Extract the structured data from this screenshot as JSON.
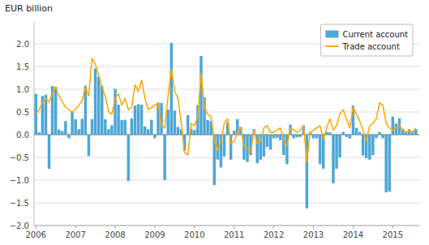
{
  "chart_data": {
    "type": "bar",
    "ylabel": "EUR billion",
    "x": [
      2006,
      2006.0833333333333,
      2006.1666666666667,
      2006.25,
      2006.3333333333333,
      2006.4166666666667,
      2006.5,
      2006.5833333333333,
      2006.6666666666667,
      2006.75,
      2006.8333333333333,
      2006.9166666666667,
      2007,
      2007.0833333333333,
      2007.1666666666667,
      2007.25,
      2007.3333333333333,
      2007.4166666666667,
      2007.5,
      2007.5833333333333,
      2007.6666666666667,
      2007.75,
      2007.8333333333333,
      2007.9166666666667,
      2008,
      2008.0833333333333,
      2008.1666666666667,
      2008.25,
      2008.3333333333333,
      2008.4166666666667,
      2008.5,
      2008.5833333333333,
      2008.6666666666667,
      2008.75,
      2008.8333333333333,
      2008.9166666666667,
      2009,
      2009.0833333333333,
      2009.1666666666667,
      2009.25,
      2009.3333333333333,
      2009.4166666666667,
      2009.5,
      2009.5833333333333,
      2009.6666666666667,
      2009.75,
      2009.8333333333333,
      2009.9166666666667,
      2010,
      2010.0833333333333,
      2010.1666666666667,
      2010.25,
      2010.3333333333333,
      2010.4166666666667,
      2010.5,
      2010.5833333333333,
      2010.6666666666667,
      2010.75,
      2010.8333333333333,
      2010.9166666666667,
      2011,
      2011.0833333333333,
      2011.1666666666667,
      2011.25,
      2011.3333333333333,
      2011.4166666666667,
      2011.5,
      2011.5833333333333,
      2011.6666666666667,
      2011.75,
      2011.8333333333333,
      2011.9166666666667,
      2012,
      2012.0833333333333,
      2012.1666666666667,
      2012.25,
      2012.3333333333333,
      2012.4166666666667,
      2012.5,
      2012.5833333333333,
      2012.6666666666667,
      2012.75,
      2012.8333333333333,
      2012.9166666666667,
      2013,
      2013.0833333333333,
      2013.1666666666667,
      2013.25,
      2013.3333333333333,
      2013.4166666666667,
      2013.5,
      2013.5833333333333,
      2013.6666666666667,
      2013.75,
      2013.8333333333333,
      2013.9166666666667,
      2014,
      2014.0833333333333,
      2014.1666666666667,
      2014.25,
      2014.3333333333333,
      2014.4166666666667,
      2014.5,
      2014.5833333333333,
      2014.6666666666667,
      2014.75,
      2014.8333333333333,
      2014.9166666666667,
      2015,
      2015.0833333333333,
      2015.1666666666667,
      2015.25,
      2015.3333333333333,
      2015.4166666666667,
      2015.5,
      2015.5833333333333
    ],
    "series": [
      {
        "name": "Current account",
        "type": "bar",
        "color": "#4da6d6",
        "values": [
          0.9,
          0.05,
          0.85,
          0.88,
          -0.75,
          1.07,
          1.05,
          0.11,
          0.08,
          0.3,
          -0.08,
          0.5,
          0.34,
          0.12,
          0.35,
          1.08,
          -0.47,
          0.34,
          1.46,
          1.28,
          1.07,
          0.34,
          0.12,
          0.21,
          1.01,
          0.66,
          0.32,
          0.33,
          -1.02,
          0.36,
          0.64,
          0.67,
          0.66,
          0.18,
          0.12,
          0.33,
          -0.08,
          0.7,
          0.7,
          -1.0,
          0.55,
          2.02,
          0.53,
          0.17,
          0.12,
          -0.35,
          0.43,
          0.13,
          0.1,
          0.65,
          1.73,
          0.82,
          0.32,
          0.3,
          -1.11,
          -0.55,
          -0.72,
          -0.48,
          0.27,
          -0.55,
          0.09,
          0.34,
          0.17,
          -0.55,
          -0.6,
          -0.45,
          0.12,
          -0.63,
          -0.55,
          -0.48,
          -0.27,
          -0.33,
          -0.08,
          -0.07,
          -0.12,
          -0.45,
          -0.65,
          0.22,
          -0.08,
          -0.06,
          -0.05,
          0.2,
          -1.62,
          0.05,
          -0.08,
          -0.08,
          -0.65,
          -0.75,
          0.06,
          0.05,
          -1.07,
          -0.75,
          -0.5,
          0.06,
          -0.05,
          -0.08,
          0.64,
          0.15,
          0.06,
          -0.46,
          -0.52,
          -0.55,
          -0.45,
          -0.08,
          0.06,
          -0.08,
          -1.27,
          -1.25,
          0.4,
          0.24,
          0.36,
          0.13,
          0.06,
          0.12,
          0.08,
          0.12
        ]
      },
      {
        "name": "Trade account",
        "type": "line",
        "color": "#FFA500",
        "values": [
          0.45,
          0.55,
          0.7,
          0.8,
          0.72,
          0.9,
          1.05,
          0.85,
          0.72,
          0.6,
          0.55,
          0.5,
          0.55,
          0.65,
          0.75,
          1.05,
          0.85,
          1.68,
          1.55,
          1.3,
          1.05,
          0.85,
          0.5,
          0.45,
          0.8,
          0.9,
          0.65,
          0.8,
          0.55,
          0.6,
          1.1,
          0.95,
          1.2,
          0.8,
          0.55,
          0.6,
          0.65,
          0.7,
          0.2,
          0.15,
          0.85,
          1.45,
          0.95,
          0.8,
          0.25,
          -0.4,
          -0.45,
          0.25,
          0.2,
          0.4,
          1.35,
          0.6,
          0.45,
          0.4,
          -0.1,
          -0.35,
          -0.15,
          0.25,
          0.35,
          -0.2,
          -0.15,
          0.05,
          0.15,
          -0.25,
          -0.3,
          -0.4,
          0.1,
          -0.2,
          -0.15,
          0.15,
          0.2,
          0.05,
          0.05,
          0.1,
          0.15,
          -0.1,
          -0.25,
          0.15,
          0.1,
          0.05,
          0.1,
          0.2,
          -0.6,
          0.05,
          0.1,
          0.15,
          0.2,
          -0.1,
          0.15,
          0.35,
          0.1,
          0.2,
          0.45,
          0.55,
          0.35,
          0.15,
          0.6,
          0.45,
          0.3,
          0.1,
          -0.15,
          0.2,
          0.25,
          0.35,
          0.7,
          0.65,
          0.25,
          0.15,
          0.1,
          0.15,
          0.2,
          0.1,
          0.05,
          0.1,
          0.05,
          0.15
        ]
      }
    ],
    "xlim": [
      2005.9545833333334,
      2015.66875
    ],
    "xticks": [
      2006,
      2007,
      2008,
      2009,
      2010,
      2011,
      2012,
      2013,
      2014,
      2015
    ],
    "ylim": [
      -2.0,
      2.5
    ],
    "yticks": [
      {
        "value": -2.0,
        "label": "−2.0"
      },
      {
        "value": -1.5,
        "label": "−1.5"
      },
      {
        "value": -1.0,
        "label": "−1.0"
      },
      {
        "value": -0.5,
        "label": "−0.5"
      },
      {
        "value": 0.0,
        "label": "0.0"
      },
      {
        "value": 0.5,
        "label": "0.5"
      },
      {
        "value": 1.0,
        "label": "1.0"
      },
      {
        "value": 1.5,
        "label": "1.5"
      },
      {
        "value": 2.0,
        "label": "2.0"
      }
    ],
    "grid": true,
    "legend": "upper-right"
  }
}
